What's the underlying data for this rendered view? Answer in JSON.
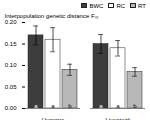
{
  "chart_data": {
    "type": "bar",
    "categories": [
      "Humans",
      "Livestock"
    ],
    "series": [
      {
        "name": "BWC",
        "color": "#3d3d3d",
        "values": [
          0.17,
          0.15
        ],
        "errors": [
          0.022,
          0.022
        ],
        "letters": [
          "a",
          "a"
        ]
      },
      {
        "name": "RC",
        "color": "#ffffff",
        "values": [
          0.16,
          0.14
        ],
        "errors": [
          0.028,
          0.018
        ],
        "letters": [
          "a",
          "a"
        ]
      },
      {
        "name": "RT",
        "color": "#b8b8b8",
        "values": [
          0.09,
          0.085
        ],
        "errors": [
          0.013,
          0.01
        ],
        "letters": [
          "b",
          "b"
        ]
      }
    ],
    "ylabel": "Interpopulation genetic distance Fₛₜ",
    "ylim": [
      0.0,
      0.2
    ],
    "yticks": [
      {
        "value": 0.0,
        "label": "0.00"
      },
      {
        "value": 0.05,
        "label": "0.05"
      },
      {
        "value": 0.1,
        "label": "0.10"
      },
      {
        "value": 0.15,
        "label": "0.15"
      },
      {
        "value": 0.2,
        "label": "0.20"
      }
    ],
    "grid": false,
    "legend": "upper right"
  }
}
